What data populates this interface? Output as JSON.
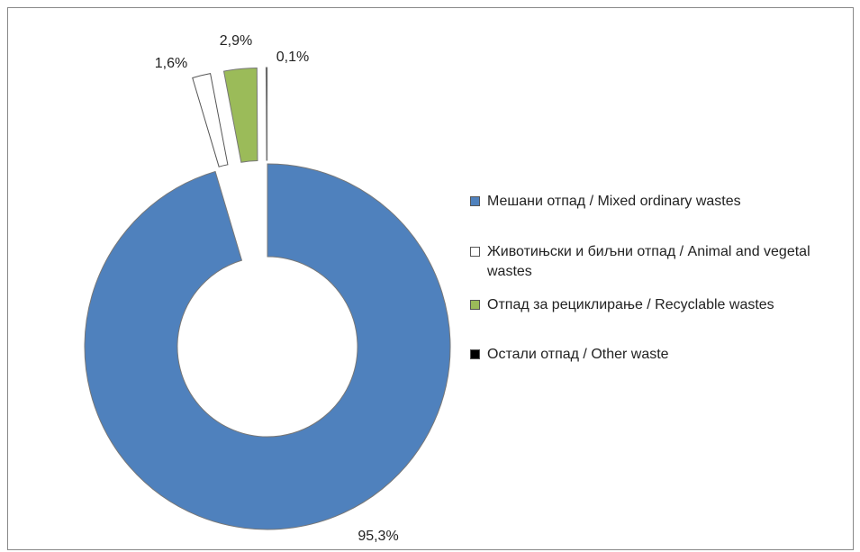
{
  "chart_data": {
    "type": "donut",
    "series": [
      {
        "name": "Мешани отпад / Mixed ordinary wastes",
        "color": "#4f81bd",
        "values": [
          95.3
        ],
        "value_labels": [
          "95,3%"
        ]
      },
      {
        "name": "Животињски и биљни отпад / Animal and vegetal wastes",
        "color": "#ffffff",
        "values": [
          1.6
        ],
        "value_labels": [
          "1,6%"
        ]
      },
      {
        "name": "Отпад за рециклирање / Recyclable wastes",
        "color": "#9bbb59",
        "values": [
          2.9
        ],
        "value_labels": [
          "2,9%"
        ]
      },
      {
        "name": "Остали отпад / Other waste",
        "color": "#000000",
        "values": [
          0.1
        ],
        "value_labels": [
          "0,1%"
        ]
      }
    ]
  }
}
